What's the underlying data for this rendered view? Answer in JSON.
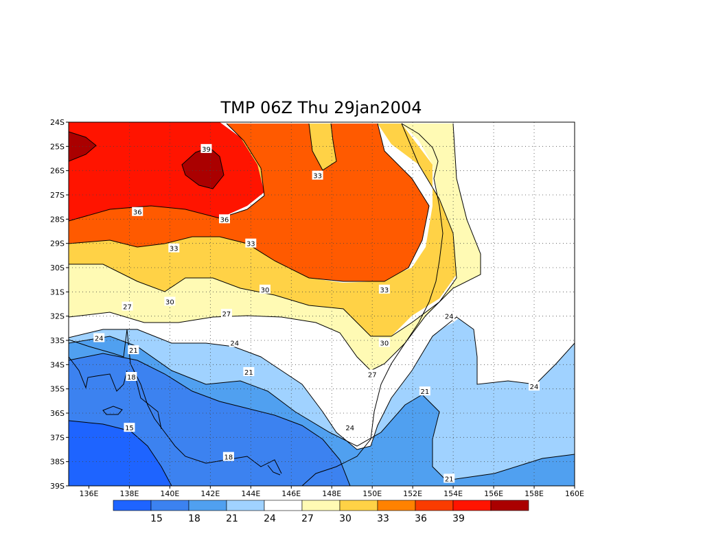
{
  "title": "TMP 06Z Thu 29jan2004",
  "x_ticks": [
    "136E",
    "138E",
    "140E",
    "142E",
    "144E",
    "146E",
    "148E",
    "150E",
    "152E",
    "154E",
    "156E",
    "158E",
    "160E"
  ],
  "y_ticks": [
    "24S",
    "25S",
    "26S",
    "27S",
    "28S",
    "29S",
    "30S",
    "31S",
    "32S",
    "33S",
    "34S",
    "35S",
    "36S",
    "37S",
    "38S",
    "39S"
  ],
  "colorbar": {
    "colors": [
      "#1e64ff",
      "#3c82f0",
      "#50a0f0",
      "#a0d2ff",
      "#ffffff",
      "#fffab4",
      "#ffd246",
      "#ff8200",
      "#fa3c00",
      "#ff1400",
      "#aa0000"
    ],
    "labels": [
      "15",
      "18",
      "21",
      "24",
      "27",
      "30",
      "33",
      "36",
      "39"
    ]
  },
  "contour_labels": [
    {
      "text": "39",
      "lon": 141.8,
      "lat": -25.1
    },
    {
      "text": "33",
      "lon": 147.3,
      "lat": -26.2
    },
    {
      "text": "36",
      "lon": 138.4,
      "lat": -27.7
    },
    {
      "text": "36",
      "lon": 142.7,
      "lat": -28.0
    },
    {
      "text": "33",
      "lon": 140.2,
      "lat": -29.2
    },
    {
      "text": "33",
      "lon": 144.0,
      "lat": -29.0
    },
    {
      "text": "30",
      "lon": 140.0,
      "lat": -31.4
    },
    {
      "text": "30",
      "lon": 144.7,
      "lat": -30.9
    },
    {
      "text": "33",
      "lon": 150.6,
      "lat": -30.9
    },
    {
      "text": "27",
      "lon": 137.9,
      "lat": -31.6
    },
    {
      "text": "27",
      "lon": 142.8,
      "lat": -31.9
    },
    {
      "text": "24",
      "lon": 136.5,
      "lat": -32.9
    },
    {
      "text": "24",
      "lon": 143.2,
      "lat": -33.1
    },
    {
      "text": "30",
      "lon": 150.6,
      "lat": -33.1
    },
    {
      "text": "24",
      "lon": 153.8,
      "lat": -32.0
    },
    {
      "text": "21",
      "lon": 138.2,
      "lat": -33.4
    },
    {
      "text": "18",
      "lon": 138.1,
      "lat": -34.5
    },
    {
      "text": "21",
      "lon": 143.9,
      "lat": -34.3
    },
    {
      "text": "27",
      "lon": 150.0,
      "lat": -34.4
    },
    {
      "text": "21",
      "lon": 152.6,
      "lat": -35.1
    },
    {
      "text": "24",
      "lon": 158.0,
      "lat": -34.9
    },
    {
      "text": "15",
      "lon": 138.0,
      "lat": -36.6
    },
    {
      "text": "24",
      "lon": 148.9,
      "lat": -36.6
    },
    {
      "text": "18",
      "lon": 142.9,
      "lat": -37.8
    },
    {
      "text": "21",
      "lon": 153.8,
      "lat": -38.7
    }
  ]
}
